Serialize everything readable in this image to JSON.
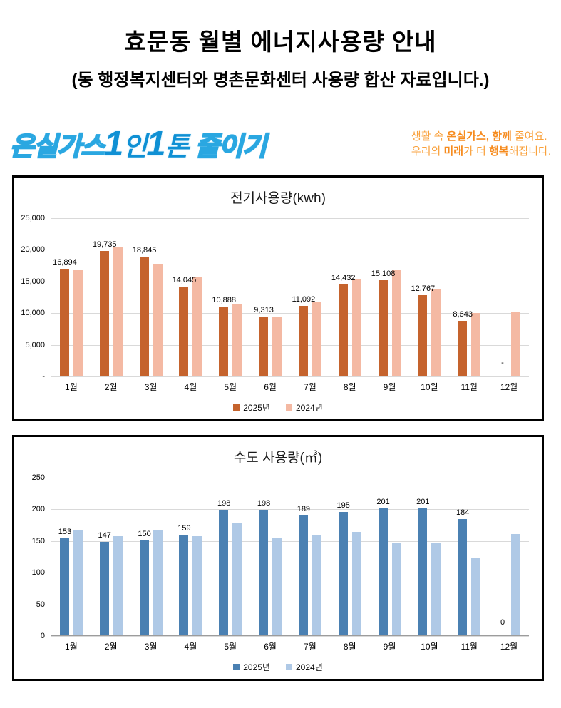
{
  "header": {
    "title": "효문동 월별 에너지사용량 안내",
    "subtitle": "(동 행정복지센터와 명촌문화센터 사용량 합산 자료입니다.)"
  },
  "branding": {
    "logo_outline_left": "온실가스",
    "logo_solid": "1인1톤",
    "logo_outline_right": "줄이기",
    "logo_color": "#2aa7e1",
    "slogan_color": "#f79420",
    "slogan_lines": [
      [
        {
          "t": "생활 속 ",
          "b": false
        },
        {
          "t": "온실가스,",
          "b": true
        },
        {
          "t": " ",
          "b": false
        },
        {
          "t": "함께",
          "b": true
        },
        {
          "t": " 줄여요.",
          "b": false
        }
      ],
      [
        {
          "t": "우리의 ",
          "b": false
        },
        {
          "t": "미래",
          "b": true
        },
        {
          "t": "가 더 ",
          "b": false
        },
        {
          "t": "행복",
          "b": true
        },
        {
          "t": "해집니다.",
          "b": false
        }
      ]
    ]
  },
  "chart_data": [
    {
      "type": "bar",
      "title": "전기사용량(kwh)",
      "categories": [
        "1월",
        "2월",
        "3월",
        "4월",
        "5월",
        "6월",
        "7월",
        "8월",
        "9월",
        "10월",
        "11월",
        "12월"
      ],
      "series": [
        {
          "name": "2025년",
          "color": "#c5632d",
          "values": [
            16894,
            19735,
            18845,
            14045,
            10888,
            9313,
            11092,
            14432,
            15108,
            12767,
            8643,
            0
          ],
          "labels": [
            "16,894",
            "19,735",
            "18,845",
            "14,045",
            "10,888",
            "9,313",
            "11,092",
            "14,432",
            "15,108",
            "12,767",
            "8,643",
            "-"
          ]
        },
        {
          "name": "2024년",
          "color": "#f4b9a3",
          "values": [
            16650,
            20400,
            17650,
            15500,
            11250,
            9400,
            11750,
            15250,
            16800,
            13600,
            9950,
            10000
          ],
          "labels": null
        }
      ],
      "ylim": [
        0,
        25000
      ],
      "ytick_values": [
        25000,
        20000,
        15000,
        10000,
        5000,
        0
      ],
      "ytick_labels": [
        "25,000",
        "20,000",
        "15,000",
        "10,000",
        "5,000",
        "-"
      ],
      "grid": true,
      "legend_position": "bottom"
    },
    {
      "type": "bar",
      "title": "수도 사용량(㎥)",
      "categories": [
        "1월",
        "2월",
        "3월",
        "4월",
        "5월",
        "6월",
        "7월",
        "8월",
        "9월",
        "10월",
        "11월",
        "12월"
      ],
      "series": [
        {
          "name": "2025년",
          "color": "#4a80b2",
          "values": [
            153,
            147,
            150,
            159,
            198,
            198,
            189,
            195,
            201,
            201,
            184,
            0
          ],
          "labels": [
            "153",
            "147",
            "150",
            "159",
            "198",
            "198",
            "189",
            "195",
            "201",
            "201",
            "184",
            "0"
          ]
        },
        {
          "name": "2024년",
          "color": "#afc9e6",
          "values": [
            165,
            157,
            165,
            156,
            178,
            154,
            158,
            163,
            146,
            145,
            122,
            160
          ],
          "labels": null
        }
      ],
      "ylim": [
        0,
        250
      ],
      "ytick_values": [
        250,
        200,
        150,
        100,
        50,
        0
      ],
      "ytick_labels": [
        "250",
        "200",
        "150",
        "100",
        "50",
        "0"
      ],
      "grid": true,
      "legend_position": "bottom"
    }
  ]
}
